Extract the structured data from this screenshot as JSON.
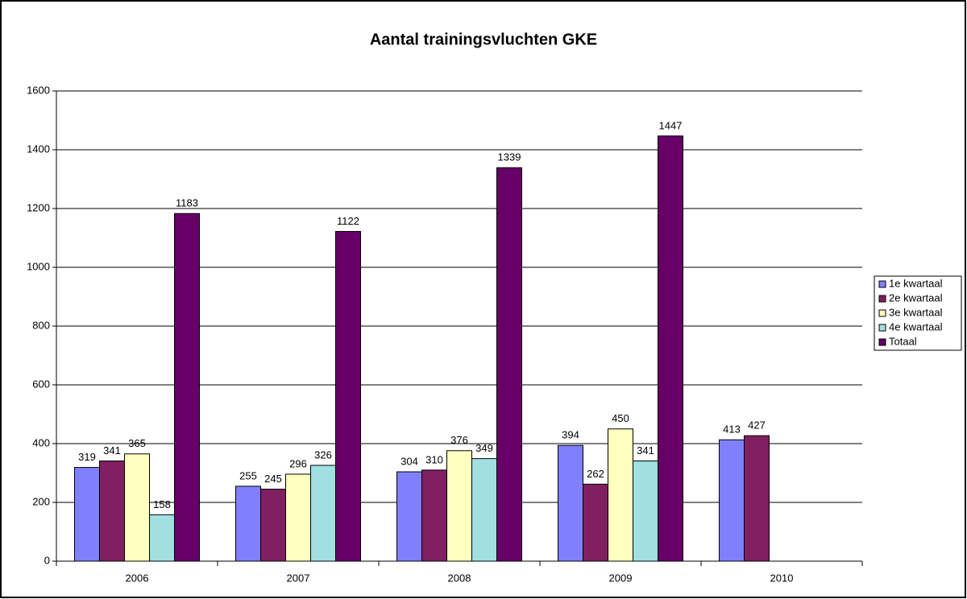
{
  "chart_data": {
    "type": "bar",
    "title": "Aantal trainingsvluchten GKE",
    "categories": [
      "2006",
      "2007",
      "2008",
      "2009",
      "2010"
    ],
    "series": [
      {
        "name": "1e kwartaal",
        "color": "#8080ff",
        "values": [
          319,
          255,
          304,
          394,
          413
        ]
      },
      {
        "name": "2e kwartaal",
        "color": "#802060",
        "values": [
          341,
          245,
          310,
          262,
          427
        ]
      },
      {
        "name": "3e kwartaal",
        "color": "#ffffc0",
        "values": [
          365,
          296,
          376,
          450,
          null
        ]
      },
      {
        "name": "4e kwartaal",
        "color": "#a0e0e0",
        "values": [
          158,
          326,
          349,
          341,
          null
        ]
      },
      {
        "name": "Totaal",
        "color": "#660066",
        "values": [
          1183,
          1122,
          1339,
          1447,
          null
        ]
      }
    ],
    "ylim": [
      0,
      1600
    ],
    "yticks": [
      0,
      200,
      400,
      600,
      800,
      1000,
      1200,
      1400,
      1600
    ],
    "grid": true,
    "legend": "right"
  }
}
